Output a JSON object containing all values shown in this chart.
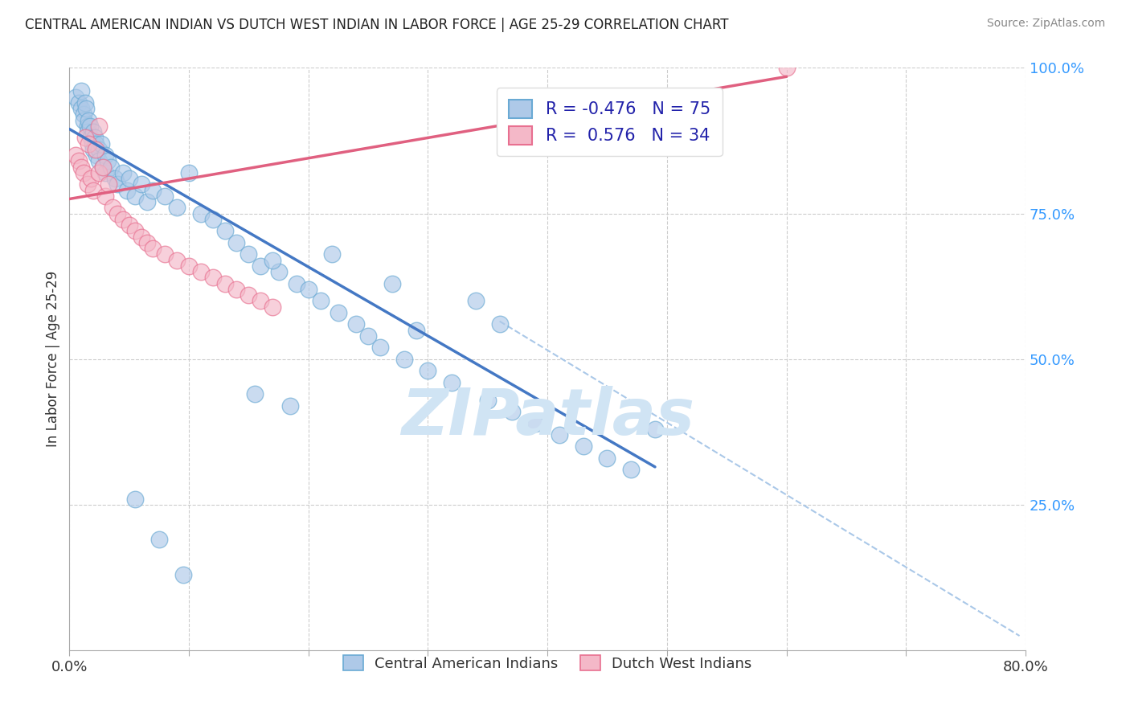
{
  "title": "CENTRAL AMERICAN INDIAN VS DUTCH WEST INDIAN IN LABOR FORCE | AGE 25-29 CORRELATION CHART",
  "source": "Source: ZipAtlas.com",
  "ylabel": "In Labor Force | Age 25-29",
  "xlim": [
    0.0,
    0.8
  ],
  "ylim": [
    0.0,
    1.0
  ],
  "ytick_labels": [
    "100.0%",
    "75.0%",
    "50.0%",
    "25.0%"
  ],
  "ytick_positions": [
    1.0,
    0.75,
    0.5,
    0.25
  ],
  "grid_color": "#cccccc",
  "background_color": "#ffffff",
  "blue_fill": "#aec9e8",
  "pink_fill": "#f4b8c8",
  "blue_edge": "#6aaad4",
  "pink_edge": "#e87090",
  "blue_line_color": "#4478c4",
  "pink_line_color": "#e06080",
  "dashed_line_color": "#aac8e8",
  "watermark_color": "#d0e4f4",
  "legend_R_blue": "-0.476",
  "legend_N_blue": "75",
  "legend_R_pink": "0.576",
  "legend_N_pink": "34",
  "blue_scatter_x": [
    0.005,
    0.008,
    0.01,
    0.01,
    0.012,
    0.012,
    0.013,
    0.014,
    0.015,
    0.015,
    0.016,
    0.017,
    0.018,
    0.019,
    0.02,
    0.02,
    0.021,
    0.022,
    0.023,
    0.025,
    0.025,
    0.027,
    0.028,
    0.03,
    0.03,
    0.032,
    0.035,
    0.038,
    0.04,
    0.045,
    0.048,
    0.05,
    0.055,
    0.06,
    0.065,
    0.07,
    0.08,
    0.09,
    0.1,
    0.11,
    0.12,
    0.13,
    0.14,
    0.15,
    0.16,
    0.175,
    0.19,
    0.2,
    0.21,
    0.225,
    0.24,
    0.25,
    0.26,
    0.28,
    0.3,
    0.32,
    0.35,
    0.37,
    0.39,
    0.41,
    0.43,
    0.45,
    0.47,
    0.49,
    0.36,
    0.34,
    0.29,
    0.27,
    0.22,
    0.17,
    0.155,
    0.185,
    0.055,
    0.075,
    0.095
  ],
  "blue_scatter_y": [
    0.95,
    0.94,
    0.93,
    0.96,
    0.92,
    0.91,
    0.94,
    0.93,
    0.9,
    0.89,
    0.91,
    0.9,
    0.88,
    0.87,
    0.89,
    0.86,
    0.88,
    0.87,
    0.85,
    0.86,
    0.84,
    0.87,
    0.83,
    0.82,
    0.85,
    0.84,
    0.83,
    0.81,
    0.8,
    0.82,
    0.79,
    0.81,
    0.78,
    0.8,
    0.77,
    0.79,
    0.78,
    0.76,
    0.82,
    0.75,
    0.74,
    0.72,
    0.7,
    0.68,
    0.66,
    0.65,
    0.63,
    0.62,
    0.6,
    0.58,
    0.56,
    0.54,
    0.52,
    0.5,
    0.48,
    0.46,
    0.43,
    0.41,
    0.39,
    0.37,
    0.35,
    0.33,
    0.31,
    0.38,
    0.56,
    0.6,
    0.55,
    0.63,
    0.68,
    0.67,
    0.44,
    0.42,
    0.26,
    0.19,
    0.13
  ],
  "pink_scatter_x": [
    0.005,
    0.008,
    0.01,
    0.012,
    0.013,
    0.015,
    0.016,
    0.018,
    0.02,
    0.022,
    0.025,
    0.028,
    0.03,
    0.033,
    0.036,
    0.04,
    0.045,
    0.05,
    0.055,
    0.06,
    0.065,
    0.07,
    0.08,
    0.09,
    0.1,
    0.11,
    0.12,
    0.13,
    0.14,
    0.15,
    0.16,
    0.17,
    0.6,
    0.025
  ],
  "pink_scatter_y": [
    0.85,
    0.84,
    0.83,
    0.82,
    0.88,
    0.8,
    0.87,
    0.81,
    0.79,
    0.86,
    0.82,
    0.83,
    0.78,
    0.8,
    0.76,
    0.75,
    0.74,
    0.73,
    0.72,
    0.71,
    0.7,
    0.69,
    0.68,
    0.67,
    0.66,
    0.65,
    0.64,
    0.63,
    0.62,
    0.61,
    0.6,
    0.59,
    1.0,
    0.9
  ],
  "blue_line_x": [
    0.0,
    0.49
  ],
  "blue_line_y": [
    0.895,
    0.315
  ],
  "pink_line_x": [
    0.0,
    0.6
  ],
  "pink_line_y": [
    0.775,
    0.985
  ],
  "dashed_line_x": [
    0.36,
    0.795
  ],
  "dashed_line_y": [
    0.565,
    0.025
  ]
}
